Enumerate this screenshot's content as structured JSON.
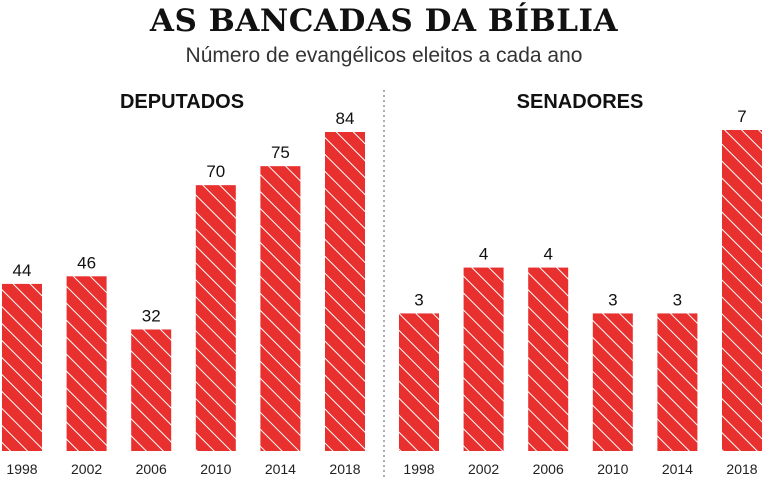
{
  "title": "AS BANCADAS DA BÍBLIA",
  "subtitle": "Número de evangélicos eleitos a cada ano",
  "colors": {
    "bar": "#e8302e",
    "stripe": "#ffffff",
    "divider": "#777777"
  },
  "chart_data": [
    {
      "type": "bar",
      "title": "DEPUTADOS",
      "categories": [
        "1998",
        "2002",
        "2006",
        "2010",
        "2014",
        "2018"
      ],
      "values": [
        44,
        46,
        32,
        70,
        75,
        84
      ],
      "ylim": [
        0,
        84
      ]
    },
    {
      "type": "bar",
      "title": "SENADORES",
      "categories": [
        "1998",
        "2002",
        "2006",
        "2010",
        "2014",
        "2018"
      ],
      "values": [
        3,
        4,
        4,
        3,
        3,
        7
      ],
      "ylim": [
        0,
        7
      ]
    }
  ]
}
